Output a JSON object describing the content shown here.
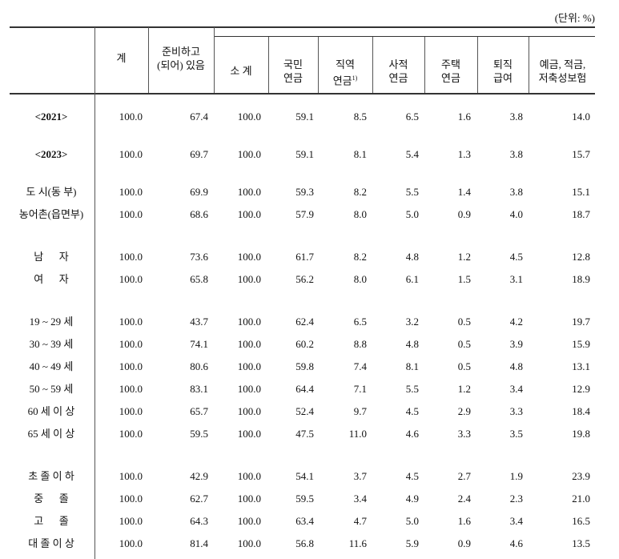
{
  "unit": "(단위: %)",
  "header": {
    "columns": [
      {
        "label": "계"
      },
      {
        "label": "준비하고\n(되어) 있음"
      },
      {
        "label": "소  계"
      },
      {
        "label": "국민\n연금"
      },
      {
        "label": "직역\n연금",
        "note": "1)"
      },
      {
        "label": "사적\n연금"
      },
      {
        "label": "주택\n연금"
      },
      {
        "label": "퇴직\n급여"
      },
      {
        "label": "예금, 적금,\n저축성보험"
      }
    ]
  },
  "table": {
    "groups": [
      {
        "rows": [
          {
            "label": "<2021>",
            "values": [
              "100.0",
              "67.4",
              "100.0",
              "59.1",
              "8.5",
              "6.5",
              "1.6",
              "3.8",
              "14.0"
            ]
          }
        ]
      },
      {
        "rows": [
          {
            "label": "<2023>",
            "values": [
              "100.0",
              "69.7",
              "100.0",
              "59.1",
              "8.1",
              "5.4",
              "1.3",
              "3.8",
              "15.7"
            ]
          }
        ]
      },
      {
        "rows": [
          {
            "label": "도 시(동 부)",
            "values": [
              "100.0",
              "69.9",
              "100.0",
              "59.3",
              "8.2",
              "5.5",
              "1.4",
              "3.8",
              "15.1"
            ]
          },
          {
            "label": "농어촌(읍면부)",
            "values": [
              "100.0",
              "68.6",
              "100.0",
              "57.9",
              "8.0",
              "5.0",
              "0.9",
              "4.0",
              "18.7"
            ]
          }
        ]
      },
      {
        "rows": [
          {
            "label": "남      자",
            "values": [
              "100.0",
              "73.6",
              "100.0",
              "61.7",
              "8.2",
              "4.8",
              "1.2",
              "4.5",
              "12.8"
            ]
          },
          {
            "label": "여      자",
            "values": [
              "100.0",
              "65.8",
              "100.0",
              "56.2",
              "8.0",
              "6.1",
              "1.5",
              "3.1",
              "18.9"
            ]
          }
        ]
      },
      {
        "rows": [
          {
            "label": "19 ~ 29 세",
            "values": [
              "100.0",
              "43.7",
              "100.0",
              "62.4",
              "6.5",
              "3.2",
              "0.5",
              "4.2",
              "19.7"
            ]
          },
          {
            "label": "30 ~ 39 세",
            "values": [
              "100.0",
              "74.1",
              "100.0",
              "60.2",
              "8.8",
              "4.8",
              "0.5",
              "3.9",
              "15.9"
            ]
          },
          {
            "label": "40 ~ 49 세",
            "values": [
              "100.0",
              "80.6",
              "100.0",
              "59.8",
              "7.4",
              "8.1",
              "0.5",
              "4.8",
              "13.1"
            ]
          },
          {
            "label": "50 ~ 59 세",
            "values": [
              "100.0",
              "83.1",
              "100.0",
              "64.4",
              "7.1",
              "5.5",
              "1.2",
              "3.4",
              "12.9"
            ]
          },
          {
            "label": "60 세 이 상",
            "values": [
              "100.0",
              "65.7",
              "100.0",
              "52.4",
              "9.7",
              "4.5",
              "2.9",
              "3.3",
              "18.4"
            ]
          },
          {
            "label": "65 세 이 상",
            "values": [
              "100.0",
              "59.5",
              "100.0",
              "47.5",
              "11.0",
              "4.6",
              "3.3",
              "3.5",
              "19.8"
            ]
          }
        ]
      },
      {
        "rows": [
          {
            "label": "초 졸 이 하",
            "values": [
              "100.0",
              "42.9",
              "100.0",
              "54.1",
              "3.7",
              "4.5",
              "2.7",
              "1.9",
              "23.9"
            ]
          },
          {
            "label": "중      졸",
            "values": [
              "100.0",
              "62.7",
              "100.0",
              "59.5",
              "3.4",
              "4.9",
              "2.4",
              "2.3",
              "21.0"
            ]
          },
          {
            "label": "고      졸",
            "values": [
              "100.0",
              "64.3",
              "100.0",
              "63.4",
              "4.7",
              "5.0",
              "1.6",
              "3.4",
              "16.5"
            ]
          },
          {
            "label": "대 졸 이 상",
            "values": [
              "100.0",
              "81.4",
              "100.0",
              "56.8",
              "11.6",
              "5.9",
              "0.9",
              "4.6",
              "13.5"
            ]
          }
        ]
      }
    ]
  }
}
